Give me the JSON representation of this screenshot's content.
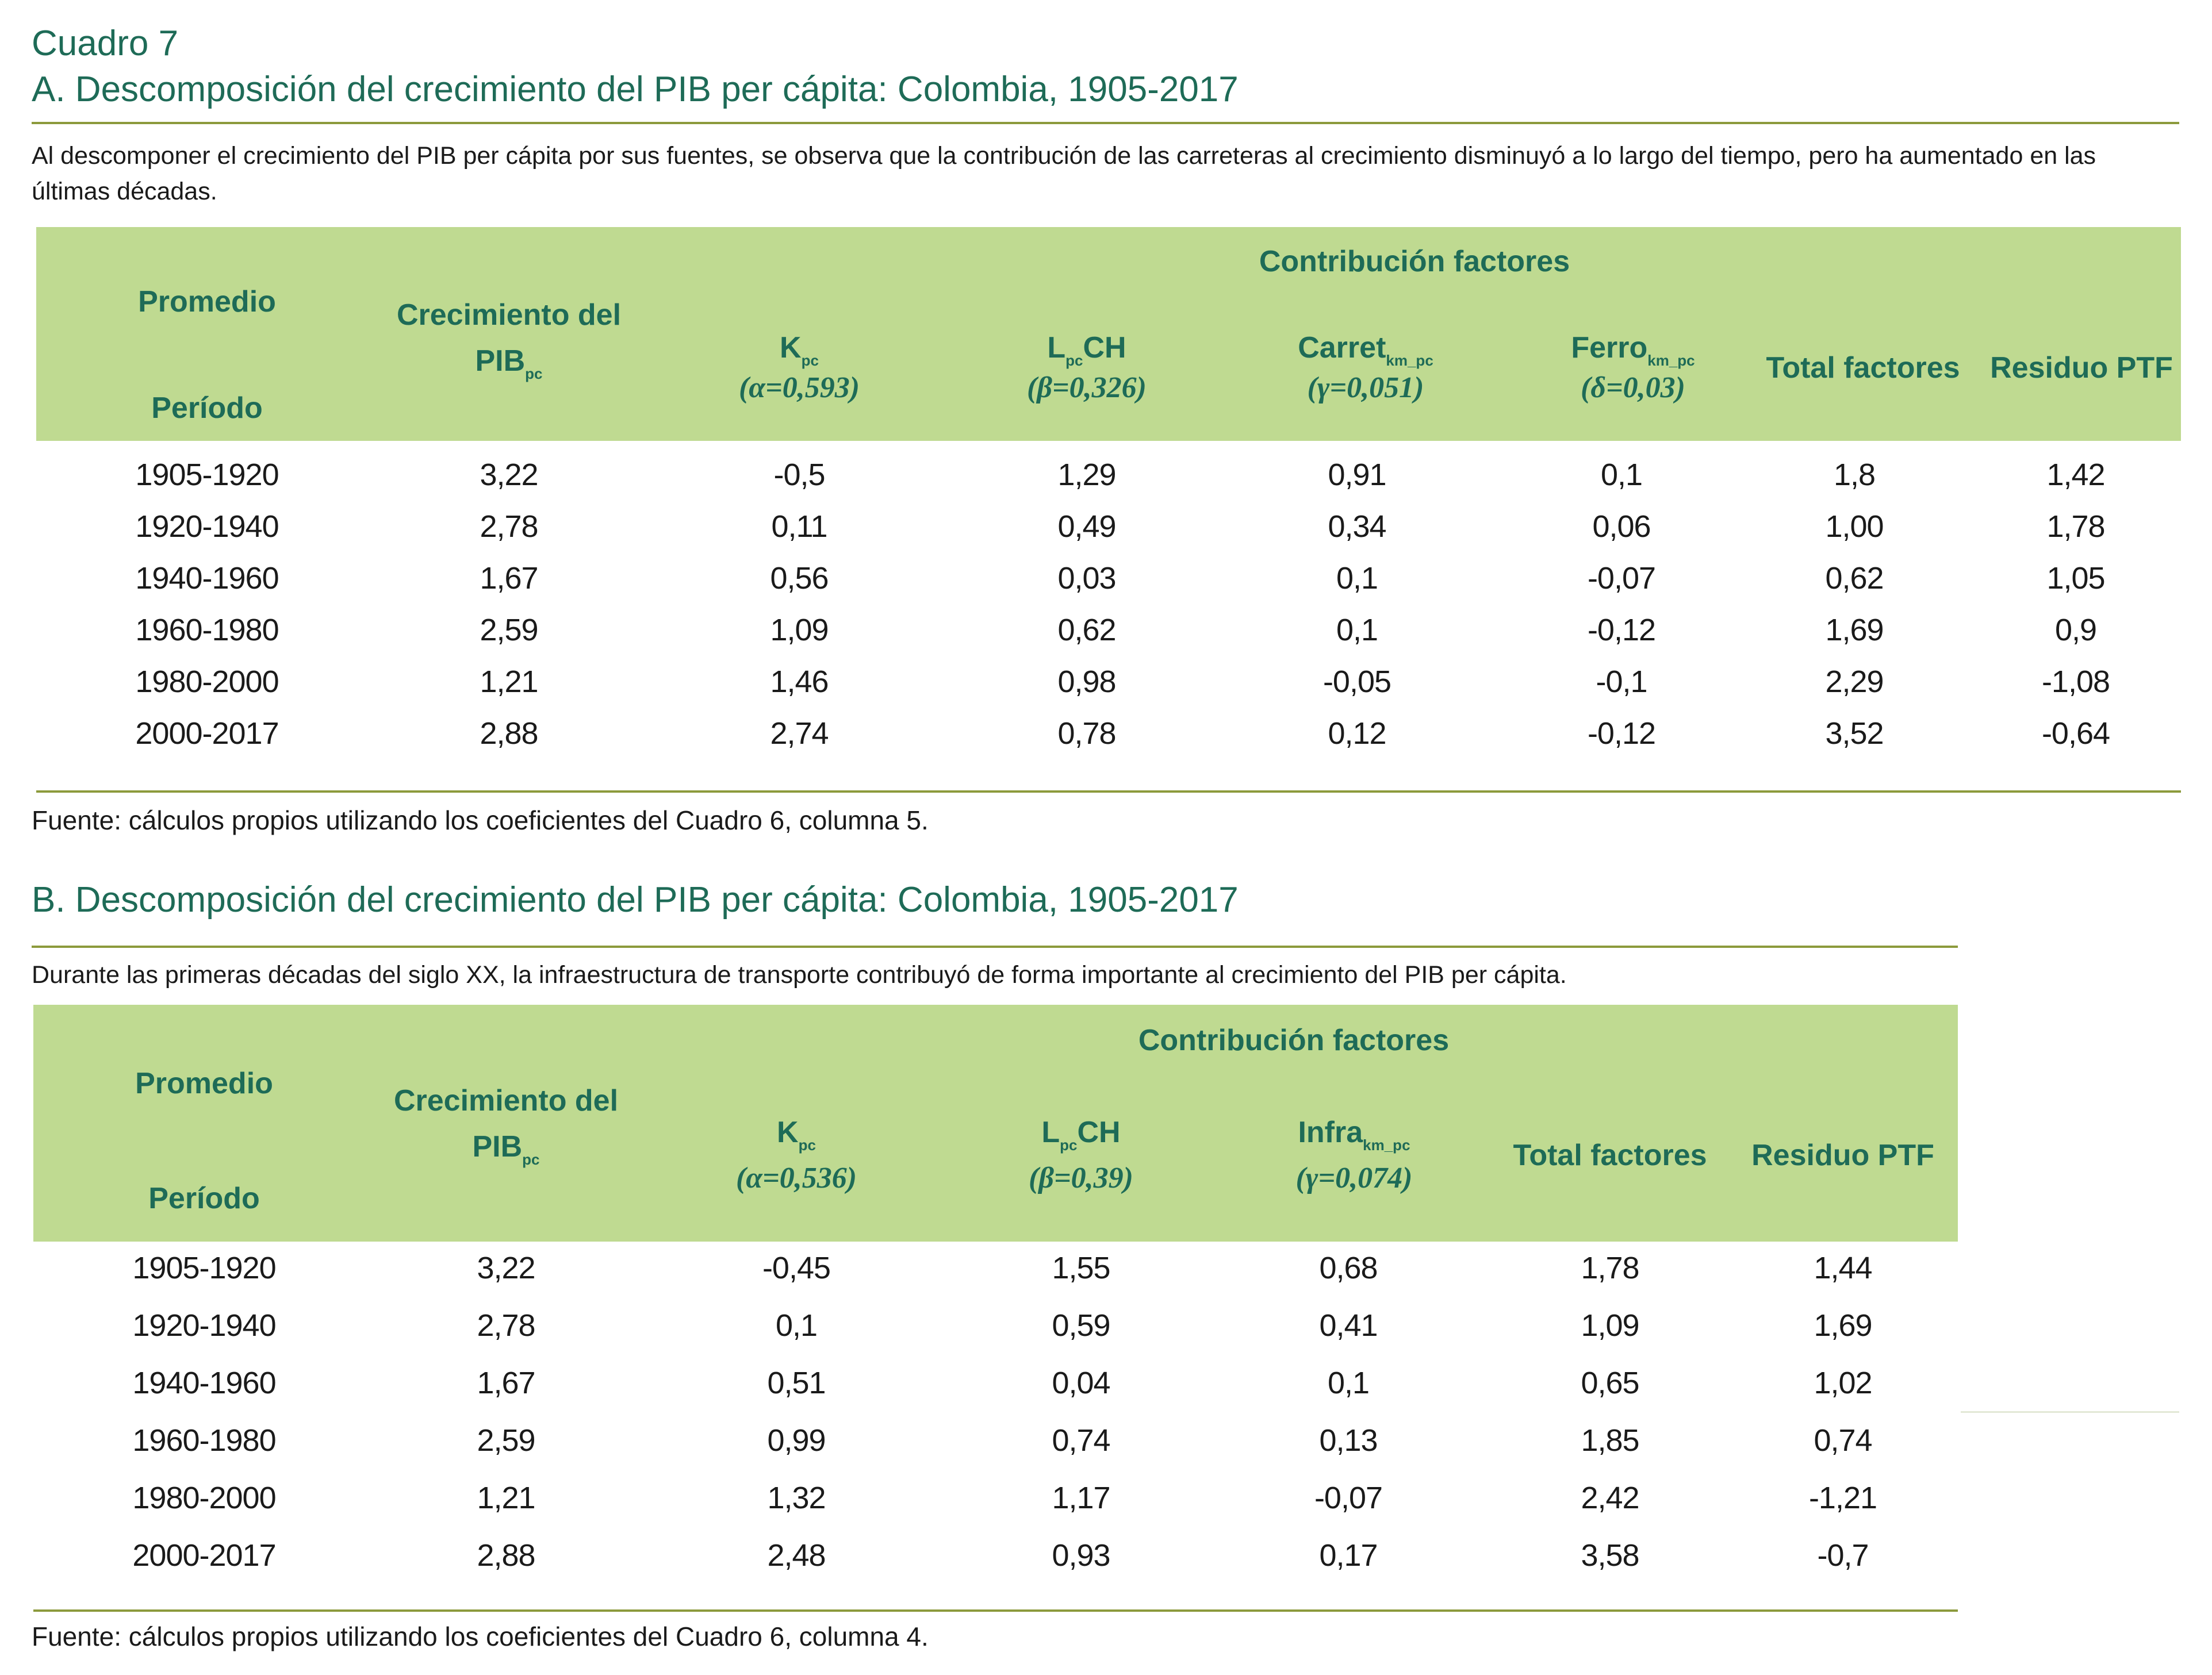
{
  "header": {
    "cuadro": "Cuadro 7"
  },
  "panel_a": {
    "title": "A. Descomposición del crecimiento del PIB per cápita: Colombia, 1905-2017",
    "description": "Al descomponer el crecimiento del PIB per cápita por sus fuentes, se observa que la contribución de las carreteras al crecimiento disminuyó a lo largo del tiempo, pero ha aumentado en las últimas décadas.",
    "headers": {
      "promedio": "Promedio",
      "periodo": "Período",
      "crec_line1": "Crecimiento del",
      "crec_line2": "PIB",
      "crec_sub": "pc",
      "contrib": "Contribución factores",
      "k": "K",
      "k_sub": "pc",
      "k_coef": "(α=0,593)",
      "l_pre": "L",
      "l_sub": "pc",
      "l_post": "CH",
      "l_coef": "(β=0,326)",
      "carret": "Carret",
      "carret_sub": "km_pc",
      "carret_coef": "(γ=0,051)",
      "ferro": "Ferro",
      "ferro_sub": "km_pc",
      "ferro_coef": "(δ=0,03)",
      "total": "Total factores",
      "residuo": "Residuo PTF"
    },
    "rows": [
      [
        "1905-1920",
        "3,22",
        "-0,5",
        "1,29",
        "0,91",
        "0,1",
        "1,8",
        "1,42"
      ],
      [
        "1920-1940",
        "2,78",
        "0,11",
        "0,49",
        "0,34",
        "0,06",
        "1,00",
        "1,78"
      ],
      [
        "1940-1960",
        "1,67",
        "0,56",
        "0,03",
        "0,1",
        "-0,07",
        "0,62",
        "1,05"
      ],
      [
        "1960-1980",
        "2,59",
        "1,09",
        "0,62",
        "0,1",
        "-0,12",
        "1,69",
        "0,9"
      ],
      [
        "1980-2000",
        "1,21",
        "1,46",
        "0,98",
        "-0,05",
        "-0,1",
        "2,29",
        "-1,08"
      ],
      [
        "2000-2017",
        "2,88",
        "2,74",
        "0,78",
        "0,12",
        "-0,12",
        "3,52",
        "-0,64"
      ]
    ],
    "source": "Fuente: cálculos propios utilizando los coeficientes del Cuadro 6, columna 5."
  },
  "panel_b": {
    "title": "B. Descomposición del crecimiento del PIB per cápita: Colombia, 1905-2017",
    "description": "Durante las primeras décadas del siglo XX, la infraestructura de transporte contribuyó de forma importante al crecimiento del PIB per cápita.",
    "headers": {
      "promedio": "Promedio",
      "periodo": "Período",
      "crec_line1": "Crecimiento del",
      "crec_line2": "PIB",
      "crec_sub": "pc",
      "contrib": "Contribución factores",
      "k": "K",
      "k_sub": "pc",
      "k_coef": "(α=0,536)",
      "l_pre": "L",
      "l_sub": "pc",
      "l_post": "CH",
      "l_coef": "(β=0,39)",
      "infra": "Infra",
      "infra_sub": "km_pc",
      "infra_coef": "(γ=0,074)",
      "total": "Total factores",
      "residuo": "Residuo PTF"
    },
    "rows": [
      [
        "1905-1920",
        "3,22",
        "-0,45",
        "1,55",
        "0,68",
        "1,78",
        "1,44"
      ],
      [
        "1920-1940",
        "2,78",
        "0,1",
        "0,59",
        "0,41",
        "1,09",
        "1,69"
      ],
      [
        "1940-1960",
        "1,67",
        "0,51",
        "0,04",
        "0,1",
        "0,65",
        "1,02"
      ],
      [
        "1960-1980",
        "2,59",
        "0,99",
        "0,74",
        "0,13",
        "1,85",
        "0,74"
      ],
      [
        "1980-2000",
        "1,21",
        "1,32",
        "1,17",
        "-0,07",
        "2,42",
        "-1,21"
      ],
      [
        "2000-2017",
        "2,88",
        "2,48",
        "0,93",
        "0,17",
        "3,58",
        "-0,7"
      ]
    ],
    "source": "Fuente: cálculos propios utilizando los coeficientes del Cuadro 6, columna 4."
  }
}
